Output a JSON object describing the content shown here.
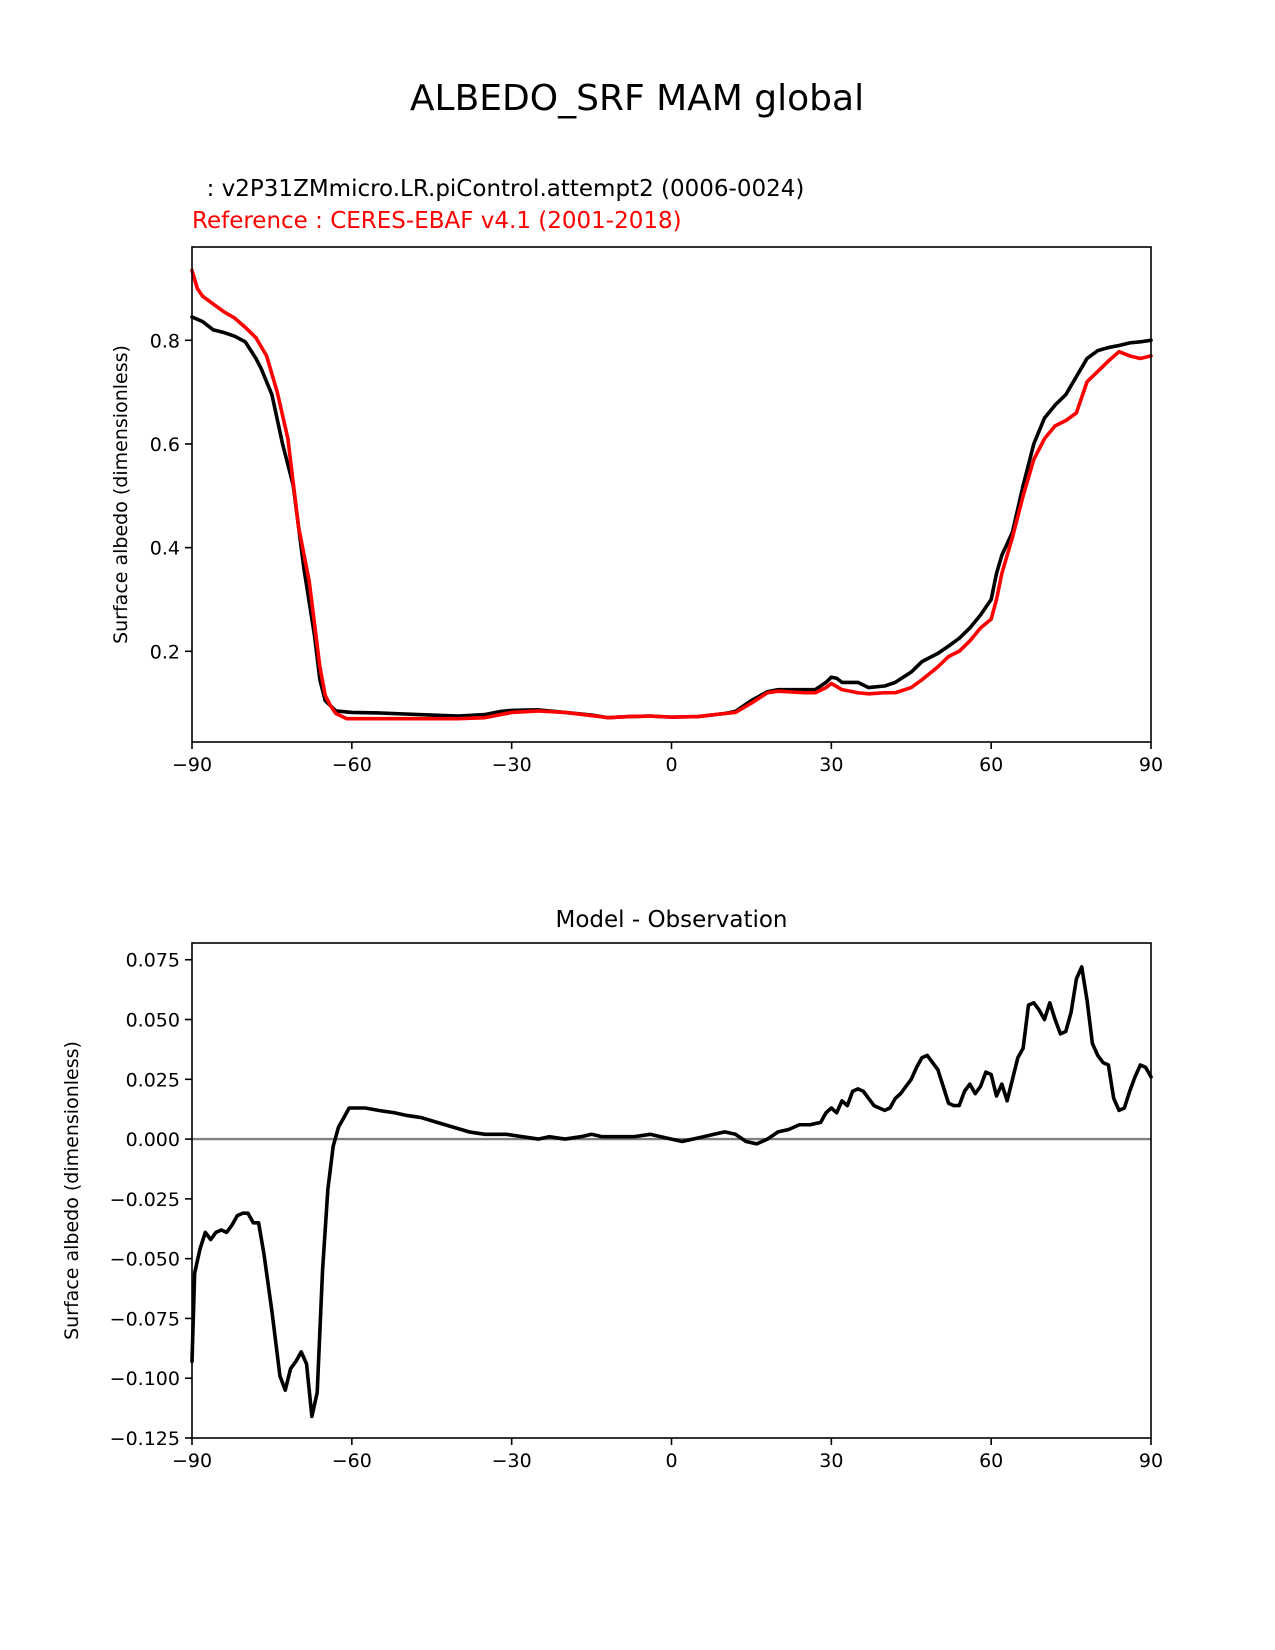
{
  "figure": {
    "title": "ALBEDO_SRF MAM global"
  },
  "chart_data": [
    {
      "type": "line",
      "title": "",
      "test_label": "  : v2P31ZMmicro.LR.piControl.attempt2 (0006-0024)",
      "reference_label": "Reference : CERES-EBAF v4.1 (2001-2018)",
      "xlabel": "",
      "ylabel": "Surface albedo (dimensionless)",
      "xlim": [
        -90,
        90
      ],
      "ylim": [
        0.025,
        0.98
      ],
      "xticks": [
        -90,
        -60,
        -30,
        0,
        30,
        60,
        90
      ],
      "xtick_labels": [
        "−90",
        "−60",
        "−30",
        "0",
        "30",
        "60",
        "90"
      ],
      "yticks": [
        0.2,
        0.4,
        0.6,
        0.8
      ],
      "ytick_labels": [
        "0.2",
        "0.4",
        "0.6",
        "0.8"
      ],
      "grid": false,
      "series": [
        {
          "color": "#000000",
          "x": [
            -90,
            -88,
            -86,
            -84,
            -82,
            -80,
            -78,
            -77,
            -75,
            -73,
            -71,
            -69,
            -67,
            -66,
            -65,
            -63,
            -60,
            -55,
            -50,
            -45,
            -40,
            -35,
            -32,
            -30,
            -25,
            -20,
            -15,
            -12,
            -8,
            -4,
            0,
            5,
            10,
            12,
            15,
            18,
            20,
            25,
            27,
            29,
            30,
            31,
            32,
            35,
            37,
            40,
            42,
            45,
            47,
            50,
            52,
            54,
            56,
            58,
            60,
            61,
            62,
            64,
            66,
            68,
            70,
            72,
            74,
            76,
            78,
            80,
            82,
            84,
            86,
            88,
            90
          ],
          "y": [
            0.845,
            0.836,
            0.82,
            0.815,
            0.808,
            0.797,
            0.765,
            0.745,
            0.695,
            0.6,
            0.52,
            0.36,
            0.23,
            0.145,
            0.105,
            0.085,
            0.082,
            0.081,
            0.079,
            0.077,
            0.075,
            0.078,
            0.084,
            0.086,
            0.087,
            0.082,
            0.077,
            0.072,
            0.074,
            0.075,
            0.073,
            0.074,
            0.08,
            0.084,
            0.105,
            0.122,
            0.126,
            0.126,
            0.126,
            0.14,
            0.15,
            0.148,
            0.14,
            0.14,
            0.13,
            0.133,
            0.14,
            0.16,
            0.18,
            0.196,
            0.21,
            0.225,
            0.245,
            0.27,
            0.3,
            0.35,
            0.385,
            0.43,
            0.52,
            0.6,
            0.65,
            0.675,
            0.695,
            0.73,
            0.765,
            0.78,
            0.786,
            0.79,
            0.795,
            0.797,
            0.8
          ]
        },
        {
          "color": "#ff0000",
          "x": [
            -90,
            -89,
            -88,
            -86,
            -84,
            -82,
            -80,
            -78,
            -76,
            -74,
            -72,
            -70,
            -68,
            -66,
            -65,
            -64,
            -63,
            -61,
            -55,
            -50,
            -45,
            -40,
            -35,
            -30,
            -25,
            -20,
            -15,
            -12,
            -8,
            -4,
            0,
            5,
            10,
            12,
            15,
            18,
            20,
            25,
            27,
            29,
            30,
            32,
            35,
            37,
            40,
            42,
            45,
            47,
            50,
            52,
            54,
            56,
            58,
            60,
            61,
            62,
            64,
            66,
            68,
            70,
            72,
            74,
            76,
            78,
            80,
            82,
            84,
            86,
            88,
            90
          ],
          "y": [
            0.935,
            0.9,
            0.885,
            0.87,
            0.855,
            0.843,
            0.825,
            0.805,
            0.77,
            0.7,
            0.61,
            0.44,
            0.335,
            0.17,
            0.115,
            0.095,
            0.08,
            0.07,
            0.07,
            0.07,
            0.07,
            0.07,
            0.072,
            0.082,
            0.085,
            0.082,
            0.076,
            0.072,
            0.074,
            0.075,
            0.073,
            0.074,
            0.08,
            0.082,
            0.1,
            0.12,
            0.123,
            0.12,
            0.12,
            0.13,
            0.138,
            0.126,
            0.12,
            0.118,
            0.12,
            0.12,
            0.13,
            0.145,
            0.17,
            0.19,
            0.2,
            0.22,
            0.245,
            0.262,
            0.3,
            0.35,
            0.42,
            0.5,
            0.57,
            0.61,
            0.635,
            0.645,
            0.66,
            0.72,
            0.74,
            0.76,
            0.778,
            0.77,
            0.765,
            0.77
          ]
        }
      ]
    },
    {
      "type": "line",
      "title": "Model - Observation",
      "xlabel": "",
      "ylabel": "Surface albedo (dimensionless)",
      "xlim": [
        -90,
        90
      ],
      "ylim": [
        -0.125,
        0.082
      ],
      "xticks": [
        -90,
        -60,
        -30,
        0,
        30,
        60,
        90
      ],
      "xtick_labels": [
        "−90",
        "−60",
        "−30",
        "0",
        "30",
        "60",
        "90"
      ],
      "yticks": [
        0.075,
        0.05,
        0.025,
        0.0,
        -0.025,
        -0.05,
        -0.075,
        -0.1,
        -0.125
      ],
      "ytick_labels": [
        "0.075",
        "0.050",
        "0.025",
        "0.000",
        "−0.025",
        "−0.050",
        "−0.075",
        "−0.100",
        "−0.125"
      ],
      "zero_line_color": "#808080",
      "grid": false,
      "series": [
        {
          "color": "#000000",
          "x": [
            -90,
            -89.5,
            -88.5,
            -87.5,
            -86.5,
            -85.5,
            -84.5,
            -83.5,
            -82.5,
            -81.5,
            -80.5,
            -79.5,
            -78.5,
            -77.5,
            -76.5,
            -75,
            -73.5,
            -72.5,
            -71.5,
            -70.5,
            -69.5,
            -68.5,
            -67.5,
            -66.5,
            -65.5,
            -64.5,
            -63.5,
            -62.5,
            -61.5,
            -60.5,
            -59.5,
            -58.5,
            -57.5,
            -55,
            -52,
            -50,
            -47,
            -44,
            -41,
            -38,
            -35,
            -33,
            -31,
            -28,
            -25,
            -23,
            -20,
            -17,
            -15,
            -13,
            -10,
            -7,
            -4,
            -2,
            0,
            2,
            4,
            6,
            8,
            10,
            12,
            14,
            16,
            18,
            20,
            22,
            24,
            26,
            28,
            29,
            30,
            31,
            32,
            33,
            34,
            35,
            36,
            38,
            39,
            40,
            41,
            42,
            43,
            44,
            45,
            46,
            47,
            48,
            49,
            50,
            51,
            52,
            53,
            54,
            55,
            56,
            57,
            58,
            59,
            60,
            61,
            62,
            63,
            64,
            65,
            66,
            67,
            68,
            69,
            70,
            71,
            72,
            73,
            74,
            75,
            76,
            77,
            78,
            79,
            80,
            81,
            82,
            83,
            84,
            85,
            86,
            87,
            88,
            89,
            90
          ],
          "y": [
            -0.093,
            -0.056,
            -0.046,
            -0.039,
            -0.042,
            -0.039,
            -0.038,
            -0.039,
            -0.036,
            -0.032,
            -0.031,
            -0.031,
            -0.035,
            -0.035,
            -0.048,
            -0.072,
            -0.099,
            -0.105,
            -0.096,
            -0.093,
            -0.089,
            -0.094,
            -0.116,
            -0.106,
            -0.055,
            -0.021,
            -0.003,
            0.005,
            0.009,
            0.013,
            0.013,
            0.013,
            0.013,
            0.012,
            0.011,
            0.01,
            0.009,
            0.007,
            0.005,
            0.003,
            0.002,
            0.002,
            0.002,
            0.001,
            0.0,
            0.001,
            0.0,
            0.001,
            0.002,
            0.001,
            0.001,
            0.001,
            0.002,
            0.001,
            0.0,
            -0.001,
            0.0,
            0.001,
            0.002,
            0.003,
            0.002,
            -0.001,
            -0.002,
            0.0,
            0.003,
            0.004,
            0.006,
            0.006,
            0.007,
            0.011,
            0.013,
            0.011,
            0.016,
            0.014,
            0.02,
            0.021,
            0.02,
            0.014,
            0.013,
            0.012,
            0.013,
            0.017,
            0.019,
            0.022,
            0.025,
            0.03,
            0.034,
            0.035,
            0.032,
            0.029,
            0.022,
            0.015,
            0.014,
            0.014,
            0.02,
            0.023,
            0.019,
            0.022,
            0.028,
            0.027,
            0.018,
            0.023,
            0.016,
            0.025,
            0.034,
            0.038,
            0.056,
            0.057,
            0.054,
            0.05,
            0.057,
            0.05,
            0.044,
            0.045,
            0.053,
            0.067,
            0.072,
            0.058,
            0.04,
            0.035,
            0.032,
            0.031,
            0.017,
            0.012,
            0.013,
            0.02,
            0.026,
            0.031,
            0.03,
            0.026
          ]
        }
      ]
    }
  ]
}
